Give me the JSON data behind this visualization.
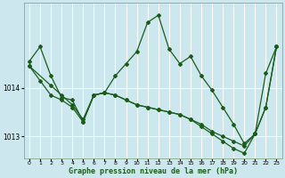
{
  "xlabel": "Graphe pression niveau de la mer (hPa)",
  "bg_color": "#cce8ee",
  "line_color": "#1a5c1a",
  "grid_color": "#ffffff",
  "ylim": [
    1012.55,
    1015.75
  ],
  "yticks": [
    1013,
    1014
  ],
  "ytick_labels": [
    "1013",
    "1014"
  ],
  "xticks": [
    0,
    1,
    2,
    3,
    4,
    5,
    6,
    7,
    8,
    9,
    10,
    11,
    12,
    13,
    14,
    15,
    16,
    17,
    18,
    19,
    20,
    21,
    22,
    23
  ],
  "series1_x": [
    0,
    1,
    2,
    3,
    4,
    5,
    6,
    7,
    8,
    9,
    10,
    11,
    12,
    13,
    14,
    15,
    16,
    17,
    18,
    19,
    20,
    21,
    22,
    23
  ],
  "series1_y": [
    1014.55,
    1014.85,
    1014.25,
    1013.8,
    1013.75,
    1013.3,
    1013.85,
    1013.9,
    1014.25,
    1014.5,
    1014.75,
    1015.35,
    1015.5,
    1014.8,
    1014.5,
    1014.65,
    1014.25,
    1013.95,
    1013.6,
    1013.25,
    1012.85,
    1013.05,
    1014.3,
    1014.85
  ],
  "series2_x": [
    0,
    1,
    2,
    3,
    4,
    5,
    6,
    7,
    8,
    9,
    10,
    11,
    12,
    13,
    14,
    15,
    16,
    17,
    18,
    19,
    20,
    21,
    22,
    23
  ],
  "series2_y": [
    1014.45,
    1014.15,
    1013.85,
    1013.75,
    1013.6,
    1013.3,
    1013.85,
    1013.9,
    1013.85,
    1013.75,
    1013.65,
    1013.6,
    1013.55,
    1013.5,
    1013.45,
    1013.35,
    1013.25,
    1013.1,
    1013.0,
    1012.9,
    1012.8,
    1013.05,
    1013.6,
    1014.85
  ],
  "series3_x": [
    0,
    2,
    3,
    4,
    5,
    6,
    7,
    8,
    9,
    10,
    11,
    12,
    13,
    14,
    15,
    16,
    17,
    18,
    19,
    20,
    21,
    22,
    23
  ],
  "series3_y": [
    1014.45,
    1014.05,
    1013.85,
    1013.65,
    1013.35,
    1013.85,
    1013.9,
    1013.85,
    1013.75,
    1013.65,
    1013.6,
    1013.55,
    1013.5,
    1013.45,
    1013.35,
    1013.2,
    1013.05,
    1012.9,
    1012.75,
    1012.65,
    1013.05,
    1013.6,
    1014.85
  ],
  "marker": "D",
  "markersize": 2.0,
  "linewidth": 0.9
}
